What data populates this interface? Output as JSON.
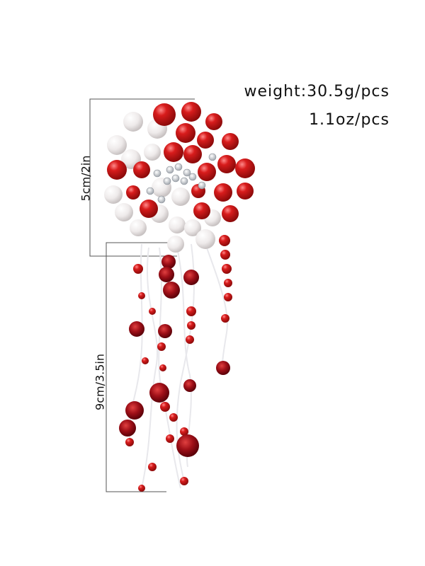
{
  "labels": {
    "weight": "weight:30.5g/pcs",
    "weight_oz": "1.1oz/pcs",
    "width": "5cm/2in",
    "length": "9cm/3.5in"
  }
}
